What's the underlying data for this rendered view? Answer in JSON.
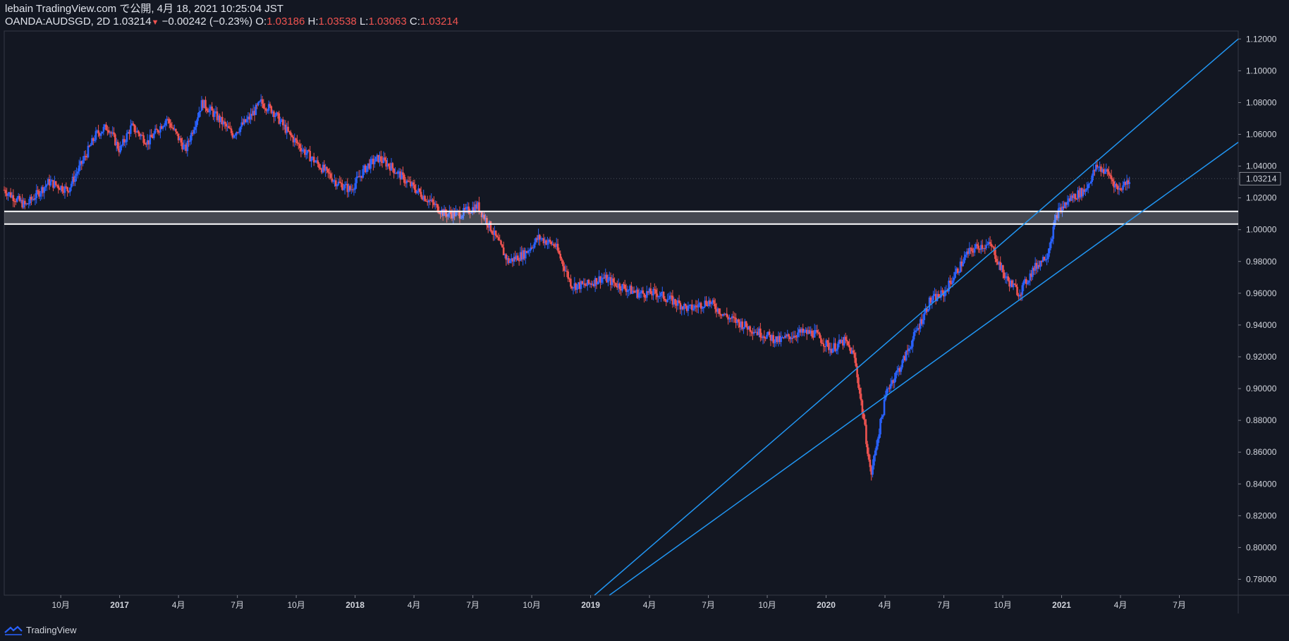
{
  "header": {
    "line1": "lebain TradingView.com で公開, 4月 18, 2021 10:25:04 JST",
    "symbol": "OANDA:AUDSGD, 2D",
    "last": "1.03214",
    "change": "−0.00242 (−0.23%)",
    "o_label": "O:",
    "o_val": "1.03186",
    "h_label": "H:",
    "h_val": "1.03538",
    "l_label": "L:",
    "l_val": "1.03063",
    "c_label": "C:",
    "c_val": "1.03214"
  },
  "footer": {
    "brand": "TradingView"
  },
  "colors": {
    "background": "#131722",
    "up": "#2962ff",
    "down": "#ef5350",
    "trendline": "#2196f3",
    "zone": "#ffffff"
  },
  "chart_data": {
    "type": "candlestick",
    "symbol": "OANDA:AUDSGD",
    "interval": "2D",
    "ylim": [
      0.77,
      1.125
    ],
    "y_ticks": [
      "1.12000",
      "1.10000",
      "1.08000",
      "1.06000",
      "1.04000",
      "1.02000",
      "1.00000",
      "0.98000",
      "0.96000",
      "0.94000",
      "0.92000",
      "0.90000",
      "0.88000",
      "0.86000",
      "0.84000",
      "0.82000",
      "0.80000",
      "0.78000"
    ],
    "y_tick_values": [
      1.12,
      1.1,
      1.08,
      1.06,
      1.04,
      1.02,
      1.0,
      0.98,
      0.96,
      0.94,
      0.92,
      0.9,
      0.88,
      0.86,
      0.84,
      0.82,
      0.8,
      0.78
    ],
    "last_price_label": "1.03214",
    "last_price": 1.03214,
    "x_ticks": [
      {
        "label": "10月",
        "t": 2016.75,
        "bold": false
      },
      {
        "label": "2017",
        "t": 2017.0,
        "bold": true
      },
      {
        "label": "4月",
        "t": 2017.25,
        "bold": false
      },
      {
        "label": "7月",
        "t": 2017.5,
        "bold": false
      },
      {
        "label": "10月",
        "t": 2017.75,
        "bold": false
      },
      {
        "label": "2018",
        "t": 2018.0,
        "bold": true
      },
      {
        "label": "4月",
        "t": 2018.25,
        "bold": false
      },
      {
        "label": "7月",
        "t": 2018.5,
        "bold": false
      },
      {
        "label": "10月",
        "t": 2018.75,
        "bold": false
      },
      {
        "label": "2019",
        "t": 2019.0,
        "bold": true
      },
      {
        "label": "4月",
        "t": 2019.25,
        "bold": false
      },
      {
        "label": "7月",
        "t": 2019.5,
        "bold": false
      },
      {
        "label": "10月",
        "t": 2019.75,
        "bold": false
      },
      {
        "label": "2020",
        "t": 2020.0,
        "bold": true
      },
      {
        "label": "4月",
        "t": 2020.25,
        "bold": false
      },
      {
        "label": "7月",
        "t": 2020.5,
        "bold": false
      },
      {
        "label": "10月",
        "t": 2020.75,
        "bold": false
      },
      {
        "label": "2021",
        "t": 2021.0,
        "bold": true
      },
      {
        "label": "4月",
        "t": 2021.25,
        "bold": false
      },
      {
        "label": "7月",
        "t": 2021.5,
        "bold": false
      }
    ],
    "xlim": [
      2016.51,
      2021.75
    ],
    "price_path": [
      [
        2016.51,
        1.025
      ],
      [
        2016.6,
        1.015
      ],
      [
        2016.7,
        1.03
      ],
      [
        2016.78,
        1.025
      ],
      [
        2016.85,
        1.045
      ],
      [
        2016.9,
        1.06
      ],
      [
        2016.95,
        1.065
      ],
      [
        2017.0,
        1.05
      ],
      [
        2017.05,
        1.065
      ],
      [
        2017.12,
        1.055
      ],
      [
        2017.2,
        1.07
      ],
      [
        2017.28,
        1.05
      ],
      [
        2017.35,
        1.08
      ],
      [
        2017.42,
        1.07
      ],
      [
        2017.48,
        1.06
      ],
      [
        2017.55,
        1.07
      ],
      [
        2017.6,
        1.08
      ],
      [
        2017.65,
        1.075
      ],
      [
        2017.72,
        1.06
      ],
      [
        2017.78,
        1.05
      ],
      [
        2017.85,
        1.04
      ],
      [
        2017.92,
        1.03
      ],
      [
        2017.98,
        1.025
      ],
      [
        2018.05,
        1.04
      ],
      [
        2018.1,
        1.045
      ],
      [
        2018.15,
        1.04
      ],
      [
        2018.22,
        1.03
      ],
      [
        2018.3,
        1.02
      ],
      [
        2018.38,
        1.01
      ],
      [
        2018.45,
        1.01
      ],
      [
        2018.52,
        1.015
      ],
      [
        2018.58,
        1.0
      ],
      [
        2018.65,
        0.98
      ],
      [
        2018.72,
        0.985
      ],
      [
        2018.78,
        0.995
      ],
      [
        2018.85,
        0.99
      ],
      [
        2018.92,
        0.965
      ],
      [
        2018.98,
        0.965
      ],
      [
        2019.05,
        0.97
      ],
      [
        2019.12,
        0.965
      ],
      [
        2019.2,
        0.96
      ],
      [
        2019.28,
        0.96
      ],
      [
        2019.35,
        0.955
      ],
      [
        2019.42,
        0.95
      ],
      [
        2019.5,
        0.955
      ],
      [
        2019.58,
        0.945
      ],
      [
        2019.65,
        0.94
      ],
      [
        2019.72,
        0.935
      ],
      [
        2019.8,
        0.93
      ],
      [
        2019.88,
        0.935
      ],
      [
        2019.95,
        0.935
      ],
      [
        2020.02,
        0.925
      ],
      [
        2020.08,
        0.93
      ],
      [
        2020.12,
        0.92
      ],
      [
        2020.16,
        0.88
      ],
      [
        2020.19,
        0.845
      ],
      [
        2020.22,
        0.87
      ],
      [
        2020.26,
        0.9
      ],
      [
        2020.32,
        0.915
      ],
      [
        2020.38,
        0.935
      ],
      [
        2020.44,
        0.955
      ],
      [
        2020.5,
        0.96
      ],
      [
        2020.56,
        0.975
      ],
      [
        2020.6,
        0.985
      ],
      [
        2020.65,
        0.99
      ],
      [
        2020.7,
        0.99
      ],
      [
        2020.76,
        0.97
      ],
      [
        2020.82,
        0.96
      ],
      [
        2020.88,
        0.975
      ],
      [
        2020.94,
        0.985
      ],
      [
        2020.98,
        1.01
      ],
      [
        2021.04,
        1.02
      ],
      [
        2021.1,
        1.025
      ],
      [
        2021.15,
        1.04
      ],
      [
        2021.2,
        1.035
      ],
      [
        2021.24,
        1.025
      ],
      [
        2021.29,
        1.032
      ]
    ],
    "annotations": {
      "support_zone": [
        1.0035,
        1.0115
      ],
      "channel_upper": [
        [
          2018.47,
          0.7
        ],
        [
          2021.75,
          1.12
        ]
      ],
      "channel_lower": [
        [
          2019.08,
          0.77
        ],
        [
          2021.75,
          1.055
        ]
      ]
    }
  }
}
